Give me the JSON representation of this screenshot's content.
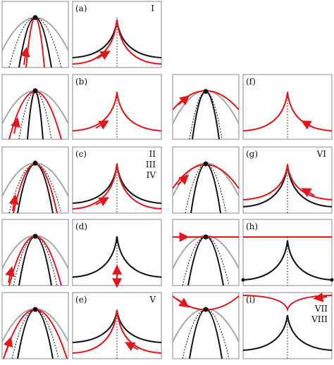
{
  "colors": {
    "black": "#111111",
    "red": "#e3161b",
    "gray": "#a8a8a8",
    "frame": "#8a8a8a"
  },
  "rows": [
    {
      "row": 1,
      "left": {
        "label": "(a)",
        "roman": [
          "I"
        ]
      },
      "right": null
    },
    {
      "row": 2,
      "left": {
        "label": "(b)",
        "roman": []
      },
      "right": {
        "label": "(f)",
        "roman": []
      }
    },
    {
      "row": 3,
      "left": {
        "label": "(c)",
        "roman": [
          "II",
          "III",
          "IV"
        ]
      },
      "right": {
        "label": "(g)",
        "roman": [
          "VI"
        ]
      }
    },
    {
      "row": 4,
      "left": {
        "label": "(d)",
        "roman": []
      },
      "right": {
        "label": "(h)",
        "roman": []
      }
    },
    {
      "row": 5,
      "left": {
        "label": "(e)",
        "roman": [
          "V"
        ]
      },
      "right": {
        "label": "(i)",
        "roman": [
          "VII",
          "VIII"
        ]
      }
    }
  ]
}
